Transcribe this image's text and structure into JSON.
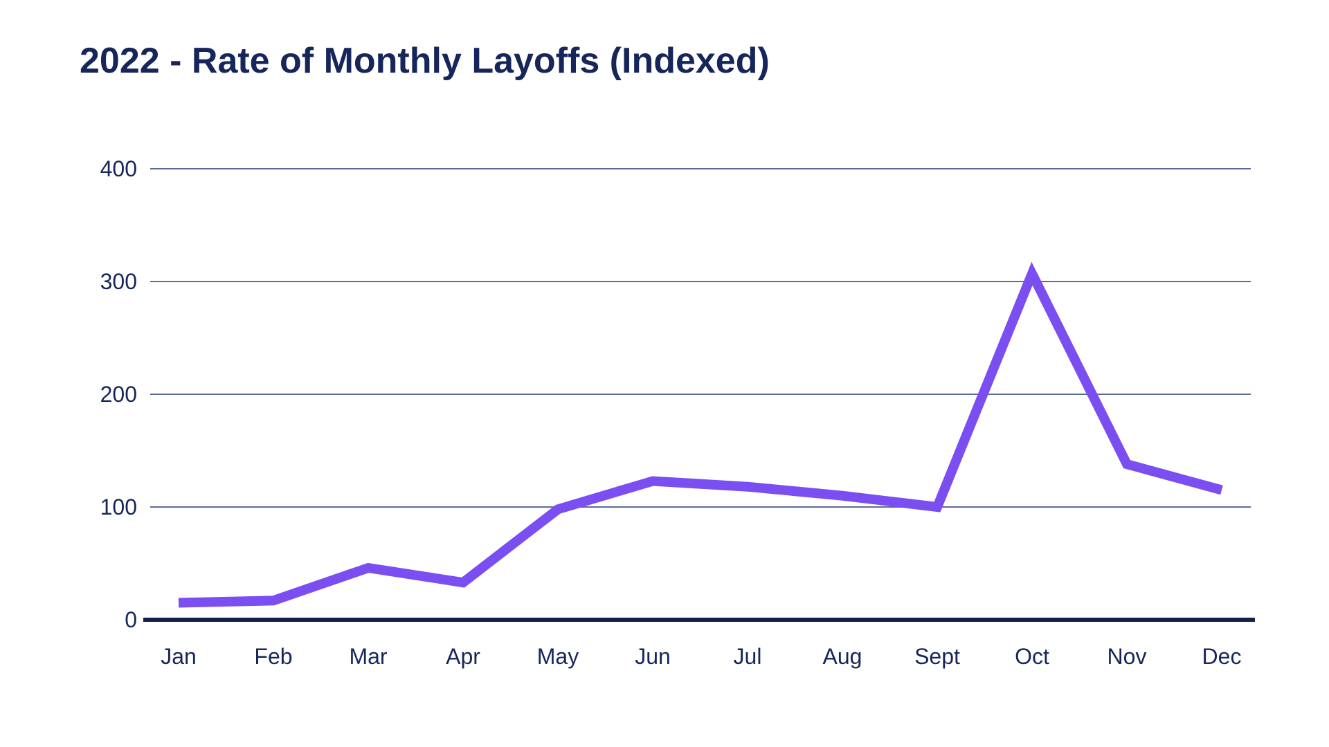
{
  "title": "2022 - Rate of Monthly Layoffs (Indexed)",
  "chart_data": {
    "type": "line",
    "title": "2022 - Rate of Monthly Layoffs (Indexed)",
    "categories": [
      "Jan",
      "Feb",
      "Mar",
      "Apr",
      "May",
      "Jun",
      "Jul",
      "Aug",
      "Sept",
      "Oct",
      "Nov",
      "Dec"
    ],
    "values": [
      15,
      17,
      46,
      33,
      98,
      123,
      118,
      110,
      100,
      307,
      138,
      115
    ],
    "series_name": "Rate of monthly layoffs (indexed)",
    "xlabel": "",
    "ylabel": "",
    "yticks": [
      0,
      100,
      200,
      300,
      400
    ],
    "ylim": [
      0,
      400
    ],
    "grid": "horizontal",
    "legend": "none",
    "colors": {
      "line": "#7A4EF0",
      "grid": "#5A6B94",
      "axis": "#13214A",
      "text": "#16265A",
      "background": "#FFFFFF"
    }
  }
}
